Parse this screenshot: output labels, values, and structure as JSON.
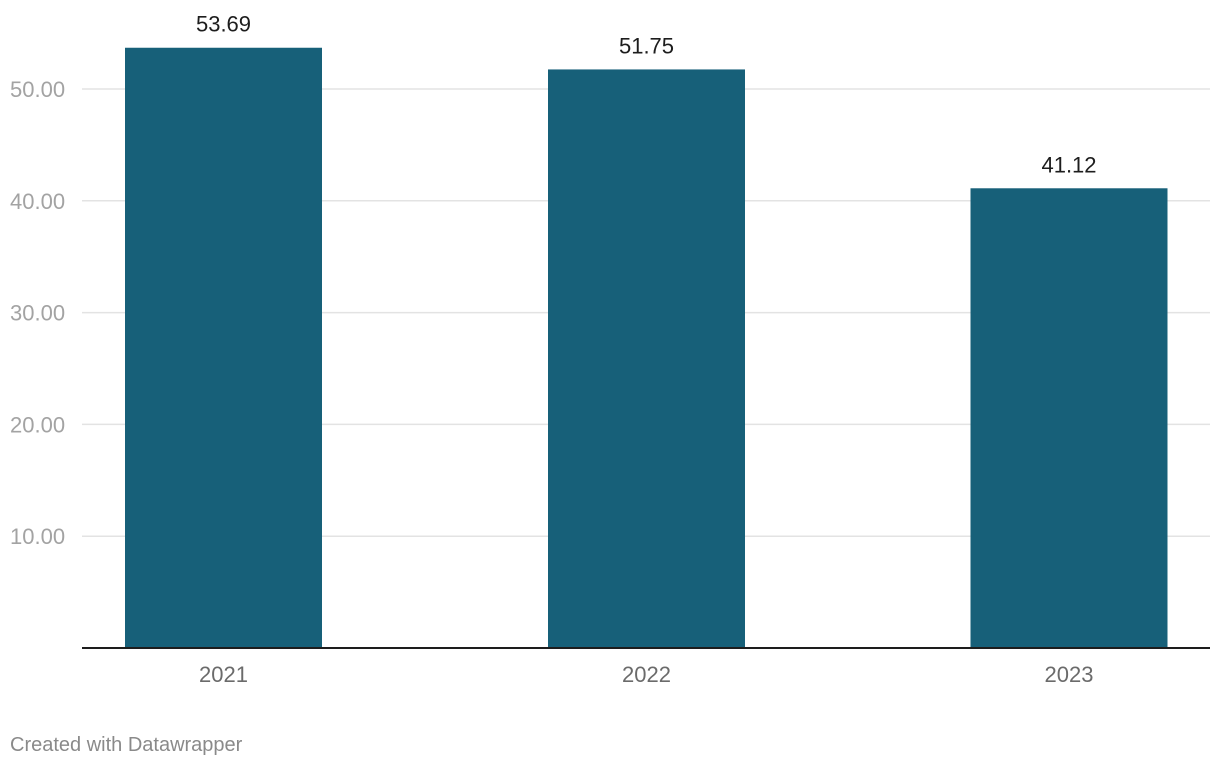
{
  "chart_data": {
    "type": "bar",
    "categories": [
      "2021",
      "2022",
      "2023"
    ],
    "values": [
      53.69,
      51.75,
      41.12
    ],
    "data_labels": [
      "53.69",
      "51.75",
      "41.12"
    ],
    "y_ticks": [
      "10.00",
      "20.00",
      "30.00",
      "40.00",
      "50.00"
    ],
    "y_tick_values": [
      10,
      20,
      30,
      40,
      50
    ],
    "ylim": [
      0,
      55
    ],
    "title": "",
    "xlabel": "",
    "ylabel": "",
    "grid": true,
    "bar_color": "#176079"
  },
  "footer": {
    "credit": "Created with Datawrapper"
  }
}
